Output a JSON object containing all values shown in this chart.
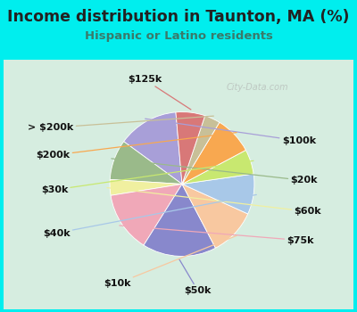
{
  "title": "Income distribution in Taunton, MA (%)",
  "subtitle": "Hispanic or Latino residents",
  "title_color": "#222222",
  "subtitle_color": "#3a7a6a",
  "background_outer": "#00EEEE",
  "background_inner": "#d6ede0",
  "watermark": "City-Data.com",
  "labels": [
    "$100k",
    "$20k",
    "$60k",
    "$75k",
    "$50k",
    "$10k",
    "$40k",
    "$30k",
    "$200k",
    "> $200k",
    "$125k"
  ],
  "values": [
    13.5,
    9.0,
    3.5,
    13.5,
    16.5,
    10.5,
    9.0,
    5.5,
    8.5,
    3.5,
    6.5
  ],
  "colors": [
    "#a89fd8",
    "#9aba8a",
    "#f0f0a0",
    "#f0a8b8",
    "#8888cc",
    "#f8c8a0",
    "#a8c8e8",
    "#c8e870",
    "#f8a850",
    "#c8c098",
    "#d87878"
  ],
  "label_fontsize": 8,
  "title_fontsize": 12.5,
  "subtitle_fontsize": 9.5,
  "startangle": 95
}
